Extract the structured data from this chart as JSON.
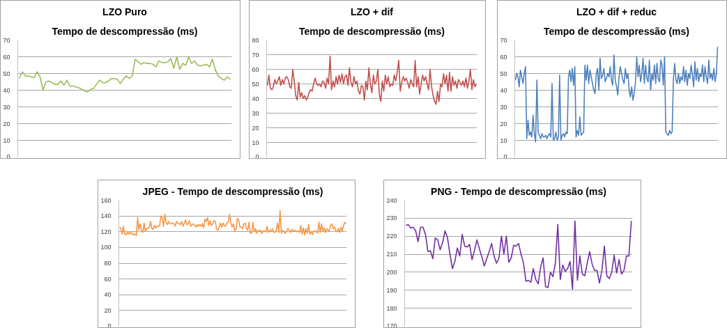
{
  "chart_data": [
    {
      "type": "line",
      "title": "LZO Puro",
      "subtitle": "Tempo de descompressão (ms)",
      "categories": [
        null,
        null,
        null,
        null,
        null,
        null,
        null,
        null,
        null,
        null,
        null,
        null,
        null,
        null,
        null,
        null,
        null,
        null,
        null,
        null,
        null,
        null,
        null,
        null,
        null,
        null,
        null,
        null,
        null,
        null,
        null,
        null,
        null,
        null,
        null,
        null,
        null,
        null,
        null,
        null,
        null,
        null,
        null,
        null,
        null,
        null,
        null,
        null,
        null,
        null,
        null,
        null,
        null,
        null,
        null,
        null,
        null,
        null,
        null,
        null,
        null,
        null,
        null,
        null,
        null,
        null,
        null,
        null,
        null,
        null,
        null,
        null
      ],
      "series": [
        {
          "color": "#9bbb59",
          "values": [
            47,
            51,
            48.5,
            48.5,
            48,
            47.5,
            51,
            48,
            40,
            45,
            45.5,
            44.5,
            43.5,
            43.5,
            45.5,
            43,
            46,
            42.5,
            42.5,
            42,
            41.5,
            40.5,
            39.5,
            39,
            40.5,
            41,
            43.5,
            46,
            44.5,
            44.5,
            45.5,
            47,
            47,
            46.5,
            44,
            46.5,
            48.5,
            47,
            48.5,
            58.5,
            57,
            55.5,
            56.5,
            56,
            56,
            55.5,
            54,
            57.5,
            56.5,
            56.5,
            57,
            59,
            53,
            60,
            52.5,
            56,
            55,
            60,
            56,
            57.5,
            55,
            54.5,
            55,
            55.5,
            54,
            58.5,
            52,
            48.5,
            47,
            46,
            48,
            46.5
          ]
        }
      ],
      "ylim": [
        0,
        70
      ],
      "yticks": [
        0,
        10,
        20,
        30,
        40,
        50,
        60,
        70
      ],
      "grid": "y",
      "tick_labels": "y"
    },
    {
      "type": "line",
      "title": "LZO + dif",
      "subtitle": "Tempo de descompressão (ms)",
      "categories": [
        null,
        null,
        null,
        null,
        null,
        null,
        null,
        null,
        null,
        null,
        null,
        null,
        null,
        null,
        null,
        null,
        null,
        null,
        null,
        null,
        null,
        null,
        null,
        null,
        null,
        null,
        null,
        null,
        null,
        null,
        null,
        null,
        null,
        null,
        null,
        null,
        null,
        null,
        null,
        null,
        null,
        null,
        null,
        null,
        null,
        null,
        null,
        null,
        null,
        null,
        null,
        null,
        null,
        null,
        null,
        null,
        null,
        null,
        null,
        null,
        null,
        null,
        null,
        null,
        null,
        null,
        null,
        null,
        null,
        null,
        null,
        null,
        null,
        null,
        null,
        null,
        null,
        null,
        null,
        null,
        null,
        null,
        null,
        null,
        null,
        null,
        null,
        null,
        null,
        null,
        null,
        null,
        null,
        null,
        null,
        null,
        null,
        null,
        null,
        null,
        null,
        null,
        null,
        null,
        null,
        null,
        null,
        null,
        null,
        null,
        null,
        null,
        null,
        null,
        null,
        null,
        null,
        null,
        null,
        null,
        null,
        null,
        null,
        null,
        null,
        null,
        null,
        null,
        null,
        null,
        null,
        null,
        null,
        null,
        null,
        null,
        null,
        null,
        null,
        null,
        null
      ],
      "series": [
        {
          "color": "#c0504d",
          "values": [
            49,
            56,
            47,
            46,
            48,
            53,
            50,
            52,
            55,
            49,
            53,
            50,
            54,
            55,
            53,
            48,
            47,
            60,
            52,
            42,
            39,
            51,
            41,
            44,
            40,
            42,
            39,
            41,
            44,
            46,
            45,
            50,
            54,
            50,
            49,
            50,
            48,
            52,
            51,
            47,
            54,
            50,
            69,
            46,
            52,
            48,
            55,
            50,
            56,
            51,
            57,
            50,
            55,
            56,
            49,
            61,
            51,
            48,
            55,
            50,
            52,
            45,
            43,
            49,
            48,
            39,
            52,
            46,
            61,
            50,
            44,
            56,
            50,
            52,
            60,
            43,
            38,
            52,
            45,
            56,
            50,
            55,
            48,
            50,
            49,
            56,
            52,
            58,
            66,
            45,
            51,
            55,
            52,
            54,
            51,
            47,
            53,
            50,
            48,
            66,
            48,
            55,
            43,
            50,
            56,
            52,
            55,
            50,
            46,
            60,
            48,
            42,
            38,
            36,
            45,
            38,
            50,
            48,
            57,
            50,
            56,
            45,
            58,
            45,
            55,
            49,
            52,
            47,
            53,
            51,
            49,
            52,
            48,
            54,
            47,
            52,
            60,
            46,
            53,
            48,
            50
          ]
        }
      ],
      "ylim": [
        0,
        80
      ],
      "yticks": [
        0,
        10,
        20,
        30,
        40,
        50,
        60,
        70,
        80
      ],
      "grid": "y",
      "tick_labels": "y"
    },
    {
      "type": "line",
      "title": "LZO + dif + reduc",
      "subtitle": "Tempo de descompressão (ms)",
      "categories": [
        null,
        null,
        null,
        null,
        null,
        null,
        null,
        null,
        null,
        null,
        null,
        null,
        null,
        null,
        null,
        null,
        null,
        null,
        null,
        null,
        null,
        null,
        null,
        null,
        null,
        null,
        null,
        null,
        null,
        null,
        null,
        null,
        null,
        null,
        null,
        null,
        null,
        null,
        null,
        null,
        null,
        null,
        null,
        null,
        null,
        null,
        null,
        null,
        null,
        null,
        null,
        null,
        null,
        null,
        null,
        null,
        null,
        null,
        null,
        null,
        null,
        null,
        null,
        null,
        null,
        null,
        null,
        null,
        null,
        null,
        null,
        null,
        null,
        null,
        null,
        null,
        null,
        null,
        null,
        null,
        null,
        null,
        null,
        null,
        null,
        null,
        null,
        null,
        null,
        null,
        null,
        null,
        null,
        null,
        null,
        null,
        null,
        null,
        null,
        null,
        null,
        null,
        null,
        null,
        null,
        null,
        null,
        null,
        null,
        null,
        null,
        null,
        null,
        null,
        null,
        null,
        null,
        null,
        null,
        null,
        null,
        null,
        null,
        null,
        null,
        null,
        null,
        null,
        null,
        null,
        null,
        null,
        null,
        null,
        null,
        null,
        null,
        null,
        null,
        null,
        null,
        null,
        null,
        null,
        null,
        null,
        null,
        null,
        null,
        null,
        null,
        null,
        null,
        null,
        null,
        null,
        null,
        null,
        null,
        null,
        null
      ],
      "series": [
        {
          "color": "#4f81bd",
          "values": [
            46,
            50,
            48,
            42,
            52,
            48,
            44,
            50,
            54,
            11,
            22,
            13,
            15,
            12,
            25,
            14,
            9,
            46,
            15,
            13,
            11,
            14,
            12,
            12,
            13,
            11,
            13,
            14,
            12,
            44,
            10,
            11,
            15,
            10,
            12,
            49,
            10,
            13,
            14,
            12,
            15,
            14,
            48,
            52,
            45,
            53,
            43,
            54,
            12,
            16,
            13,
            24,
            13,
            14,
            15,
            55,
            46,
            55,
            44,
            52,
            48,
            44,
            40,
            38,
            50,
            53,
            40,
            59,
            47,
            49,
            53,
            45,
            47,
            50,
            48,
            54,
            46,
            43,
            61,
            46,
            42,
            37,
            48,
            54,
            50,
            46,
            44,
            53,
            47,
            50,
            40,
            36,
            42,
            34,
            38,
            45,
            60,
            48,
            55,
            45,
            50,
            59,
            44,
            55,
            47,
            45,
            58,
            40,
            50,
            46,
            55,
            44,
            56,
            47,
            45,
            58,
            55,
            43,
            60,
            15,
            14,
            13,
            16,
            14,
            15,
            47,
            56,
            46,
            44,
            50,
            44,
            48,
            46,
            54,
            45,
            52,
            43,
            50,
            47,
            55,
            49,
            42,
            57,
            46,
            53,
            45,
            50,
            48,
            55,
            45,
            54,
            48,
            44,
            58,
            47,
            50,
            46,
            53,
            45,
            50,
            66
          ]
        }
      ],
      "ylim": [
        0,
        70
      ],
      "yticks": [
        0,
        10,
        20,
        30,
        40,
        50,
        60,
        70
      ],
      "grid": "y",
      "tick_labels": "y"
    },
    {
      "type": "line",
      "title": "JPEG - Tempo de descompressão (ms)",
      "categories": [
        null,
        null,
        null,
        null,
        null,
        null,
        null,
        null,
        null,
        null,
        null,
        null,
        null,
        null,
        null,
        null,
        null,
        null,
        null,
        null,
        null,
        null,
        null,
        null,
        null,
        null,
        null,
        null,
        null,
        null,
        null,
        null,
        null,
        null,
        null,
        null,
        null,
        null,
        null,
        null,
        null,
        null,
        null,
        null,
        null,
        null,
        null,
        null,
        null,
        null,
        null,
        null,
        null,
        null,
        null,
        null,
        null,
        null,
        null,
        null,
        null,
        null,
        null,
        null,
        null,
        null,
        null,
        null,
        null,
        null,
        null,
        null,
        null,
        null,
        null,
        null,
        null,
        null,
        null,
        null,
        null,
        null,
        null,
        null,
        null,
        null,
        null,
        null,
        null,
        null,
        null,
        null,
        null,
        null,
        null,
        null,
        null,
        null,
        null,
        null,
        null,
        null,
        null,
        null,
        null,
        null,
        null,
        null,
        null,
        null,
        null,
        null,
        null,
        null,
        null,
        null,
        null,
        null,
        null,
        null,
        null,
        null,
        null,
        null,
        null,
        null,
        null,
        null,
        null,
        null,
        null,
        null,
        null,
        null,
        null,
        null,
        null,
        null,
        null,
        null,
        null,
        null,
        null,
        null,
        null,
        null,
        null,
        null,
        null,
        null,
        null,
        null,
        null,
        null,
        null,
        null,
        null,
        null,
        null,
        null,
        null,
        null,
        null,
        null,
        null,
        null,
        null,
        null,
        null,
        null,
        null,
        null,
        null,
        null,
        null,
        null
      ],
      "series": [
        {
          "color": "#f79646",
          "values": [
            125,
            125,
            117,
            127,
            117,
            116,
            119,
            117,
            120,
            117,
            118,
            116,
            117,
            115,
            138,
            122,
            130,
            122,
            119,
            131,
            120,
            124,
            125,
            125,
            133,
            124,
            123,
            128,
            125,
            127,
            127,
            128,
            140,
            138,
            127,
            142,
            132,
            129,
            133,
            130,
            130,
            131,
            130,
            127,
            133,
            131,
            130,
            129,
            133,
            127,
            131,
            135,
            129,
            130,
            134,
            127,
            129,
            130,
            128,
            126,
            129,
            127,
            129,
            127,
            130,
            125,
            136,
            133,
            138,
            128,
            134,
            128,
            130,
            134,
            133,
            123,
            122,
            126,
            131,
            126,
            131,
            127,
            128,
            131,
            133,
            142,
            131,
            126,
            130,
            121,
            123,
            137,
            135,
            126,
            126,
            124,
            130,
            131,
            124,
            122,
            132,
            118,
            118,
            132,
            120,
            124,
            118,
            122,
            120,
            122,
            118,
            121,
            121,
            120,
            127,
            119,
            122,
            120,
            124,
            120,
            119,
            121,
            131,
            119,
            147,
            118,
            122,
            120,
            118,
            121,
            124,
            122,
            119,
            123,
            120,
            122,
            121,
            120,
            121,
            119,
            128,
            117,
            125,
            116,
            124,
            118,
            129,
            117,
            120,
            116,
            121,
            120,
            121,
            118,
            132,
            119,
            130,
            121,
            125,
            119,
            124,
            122,
            121,
            128,
            130,
            124,
            126,
            121,
            120,
            124,
            119,
            126,
            121,
            128,
            132,
            130
          ]
        }
      ],
      "ylim": [
        0,
        160
      ],
      "yticks": [
        0,
        20,
        40,
        60,
        80,
        100,
        120,
        140,
        160
      ],
      "grid": "y",
      "tick_labels": "y"
    },
    {
      "type": "line",
      "title": "PNG - Tempo de descompressão (ms)",
      "categories": [
        null,
        null,
        null,
        null,
        null,
        null,
        null,
        null,
        null,
        null,
        null,
        null,
        null,
        null,
        null,
        null,
        null,
        null,
        null,
        null,
        null,
        null,
        null,
        null,
        null,
        null,
        null,
        null,
        null,
        null,
        null,
        null,
        null,
        null,
        null,
        null,
        null,
        null,
        null,
        null,
        null,
        null,
        null,
        null,
        null,
        null,
        null,
        null,
        null,
        null,
        null,
        null,
        null,
        null,
        null,
        null,
        null,
        null,
        null,
        null,
        null,
        null,
        null,
        null,
        null,
        null,
        null,
        null,
        null,
        null,
        null,
        null,
        null,
        null,
        null,
        null,
        null,
        null,
        null,
        null,
        null,
        null,
        null,
        null,
        null,
        null,
        null,
        null,
        null,
        null,
        null,
        null,
        null
      ],
      "series": [
        {
          "color": "#7030a0",
          "values": [
            226,
            226.5,
            224.5,
            225,
            223,
            217,
            225,
            225,
            221,
            211.5,
            212,
            207.5,
            219,
            218,
            212.5,
            216.5,
            223,
            219,
            210,
            202,
            206,
            213.5,
            209,
            221,
            214.5,
            214,
            215.5,
            207,
            212,
            218,
            213,
            208.5,
            203.5,
            207.5,
            211.5,
            216,
            209,
            205,
            208,
            220,
            210,
            220,
            205.5,
            208,
            215,
            214.5,
            216,
            210,
            205,
            195,
            195.5,
            194.5,
            202,
            196,
            193.5,
            203,
            208,
            192,
            191.5,
            200,
            197.5,
            205,
            226.5,
            196,
            204,
            200.5,
            202,
            206,
            190.5,
            228.5,
            195.5,
            209,
            199,
            198,
            205,
            211.5,
            204.5,
            201,
            201,
            194,
            201,
            214.5,
            198,
            196.5,
            200,
            209.5,
            199.5,
            207,
            199,
            201,
            209,
            209,
            228.5
          ]
        }
      ],
      "ylim": [
        170,
        240
      ],
      "yticks": [
        170,
        180,
        190,
        200,
        210,
        220,
        230,
        240
      ],
      "grid": "y",
      "tick_labels": "y"
    }
  ]
}
